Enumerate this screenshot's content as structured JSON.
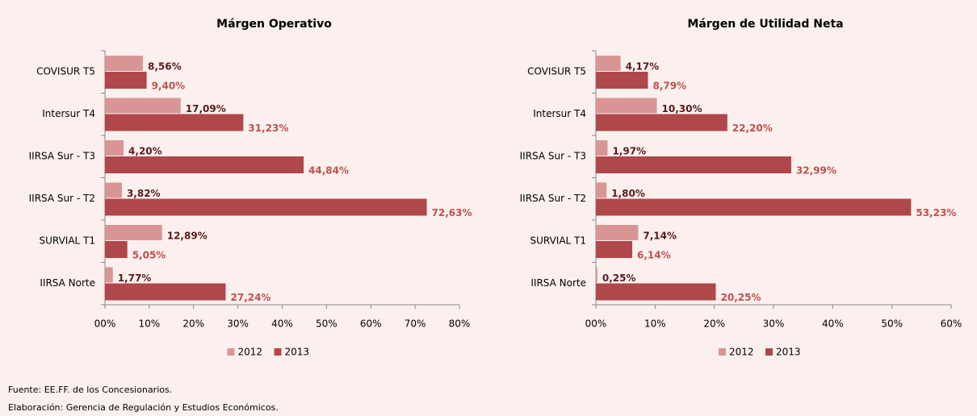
{
  "chart_data": [
    {
      "type": "bar",
      "orientation": "horizontal",
      "title": "Márgen Operativo",
      "categories": [
        "COVISUR T5",
        "Intersur T4",
        "IIRSA Sur - T3",
        "IIRSA Sur - T2",
        "SURVIAL T1",
        "IIRSA Norte"
      ],
      "series": [
        {
          "name": "2012",
          "color": "#d99594",
          "values": [
            8.56,
            17.09,
            4.2,
            3.82,
            12.89,
            1.77
          ],
          "value_labels": [
            "8,56%",
            "17,09%",
            "4,20%",
            "3,82%",
            "12,89%",
            "1,77%"
          ]
        },
        {
          "name": "2013",
          "color": "#b0474a",
          "values": [
            9.4,
            31.23,
            44.84,
            72.63,
            5.05,
            27.24
          ],
          "value_labels": [
            "9,40%",
            "31,23%",
            "44,84%",
            "72,63%",
            "5,05%",
            "27,24%"
          ]
        }
      ],
      "xlim": [
        0,
        80
      ],
      "xticks": [
        {
          "value": 0,
          "label": "00%"
        },
        {
          "value": 10,
          "label": "10%"
        },
        {
          "value": 20,
          "label": "20%"
        },
        {
          "value": 30,
          "label": "30%"
        },
        {
          "value": 40,
          "label": "40%"
        },
        {
          "value": 50,
          "label": "50%"
        },
        {
          "value": 60,
          "label": "60%"
        },
        {
          "value": 70,
          "label": "70%"
        },
        {
          "value": 80,
          "label": "80%"
        }
      ],
      "legend": "bottom"
    },
    {
      "type": "bar",
      "orientation": "horizontal",
      "title": "Márgen de Utilidad Neta",
      "categories": [
        "COVISUR T5",
        "Intersur T4",
        "IIRSA Sur - T3",
        "IIRSA Sur - T2",
        "SURVIAL T1",
        "IIRSA Norte"
      ],
      "series": [
        {
          "name": "2012",
          "color": "#d99594",
          "values": [
            4.17,
            10.3,
            1.97,
            1.8,
            7.14,
            0.25
          ],
          "value_labels": [
            "4,17%",
            "10,30%",
            "1,97%",
            "1,80%",
            "7,14%",
            "0,25%"
          ]
        },
        {
          "name": "2013",
          "color": "#b0474a",
          "values": [
            8.79,
            22.2,
            32.99,
            53.23,
            6.14,
            20.25
          ],
          "value_labels": [
            "8,79%",
            "22,20%",
            "32,99%",
            "53,23%",
            "6,14%",
            "20,25%"
          ]
        }
      ],
      "xlim": [
        0,
        60
      ],
      "xticks": [
        {
          "value": 0,
          "label": "00%"
        },
        {
          "value": 10,
          "label": "10%"
        },
        {
          "value": 20,
          "label": "20%"
        },
        {
          "value": 30,
          "label": "30%"
        },
        {
          "value": 40,
          "label": "40%"
        },
        {
          "value": 50,
          "label": "50%"
        },
        {
          "value": 60,
          "label": "60%"
        }
      ],
      "legend": "bottom"
    }
  ],
  "notes": [
    "Fuente: EE.FF. de los Concesionarios.",
    "Elaboración: Gerencia de Regulación y Estudios Económicos."
  ]
}
